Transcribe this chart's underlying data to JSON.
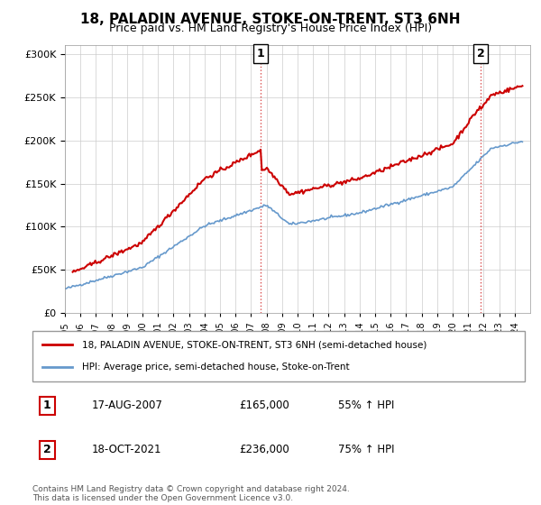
{
  "title": "18, PALADIN AVENUE, STOKE-ON-TRENT, ST3 6NH",
  "subtitle": "Price paid vs. HM Land Registry's House Price Index (HPI)",
  "property_label": "18, PALADIN AVENUE, STOKE-ON-TRENT, ST3 6NH (semi-detached house)",
  "hpi_label": "HPI: Average price, semi-detached house, Stoke-on-Trent",
  "property_color": "#cc0000",
  "hpi_color": "#6699cc",
  "annotation1_label": "1",
  "annotation1_date": "17-AUG-2007",
  "annotation1_price": "£165,000",
  "annotation1_hpi": "55% ↑ HPI",
  "annotation1_year": 2007.63,
  "annotation1_value": 165000,
  "annotation2_label": "2",
  "annotation2_date": "18-OCT-2021",
  "annotation2_price": "£236,000",
  "annotation2_hpi": "75% ↑ HPI",
  "annotation2_year": 2021.8,
  "annotation2_value": 236000,
  "footer": "Contains HM Land Registry data © Crown copyright and database right 2024.\nThis data is licensed under the Open Government Licence v3.0.",
  "ylim": [
    0,
    310000
  ],
  "xlim_start": 1995.0,
  "xlim_end": 2025.0
}
